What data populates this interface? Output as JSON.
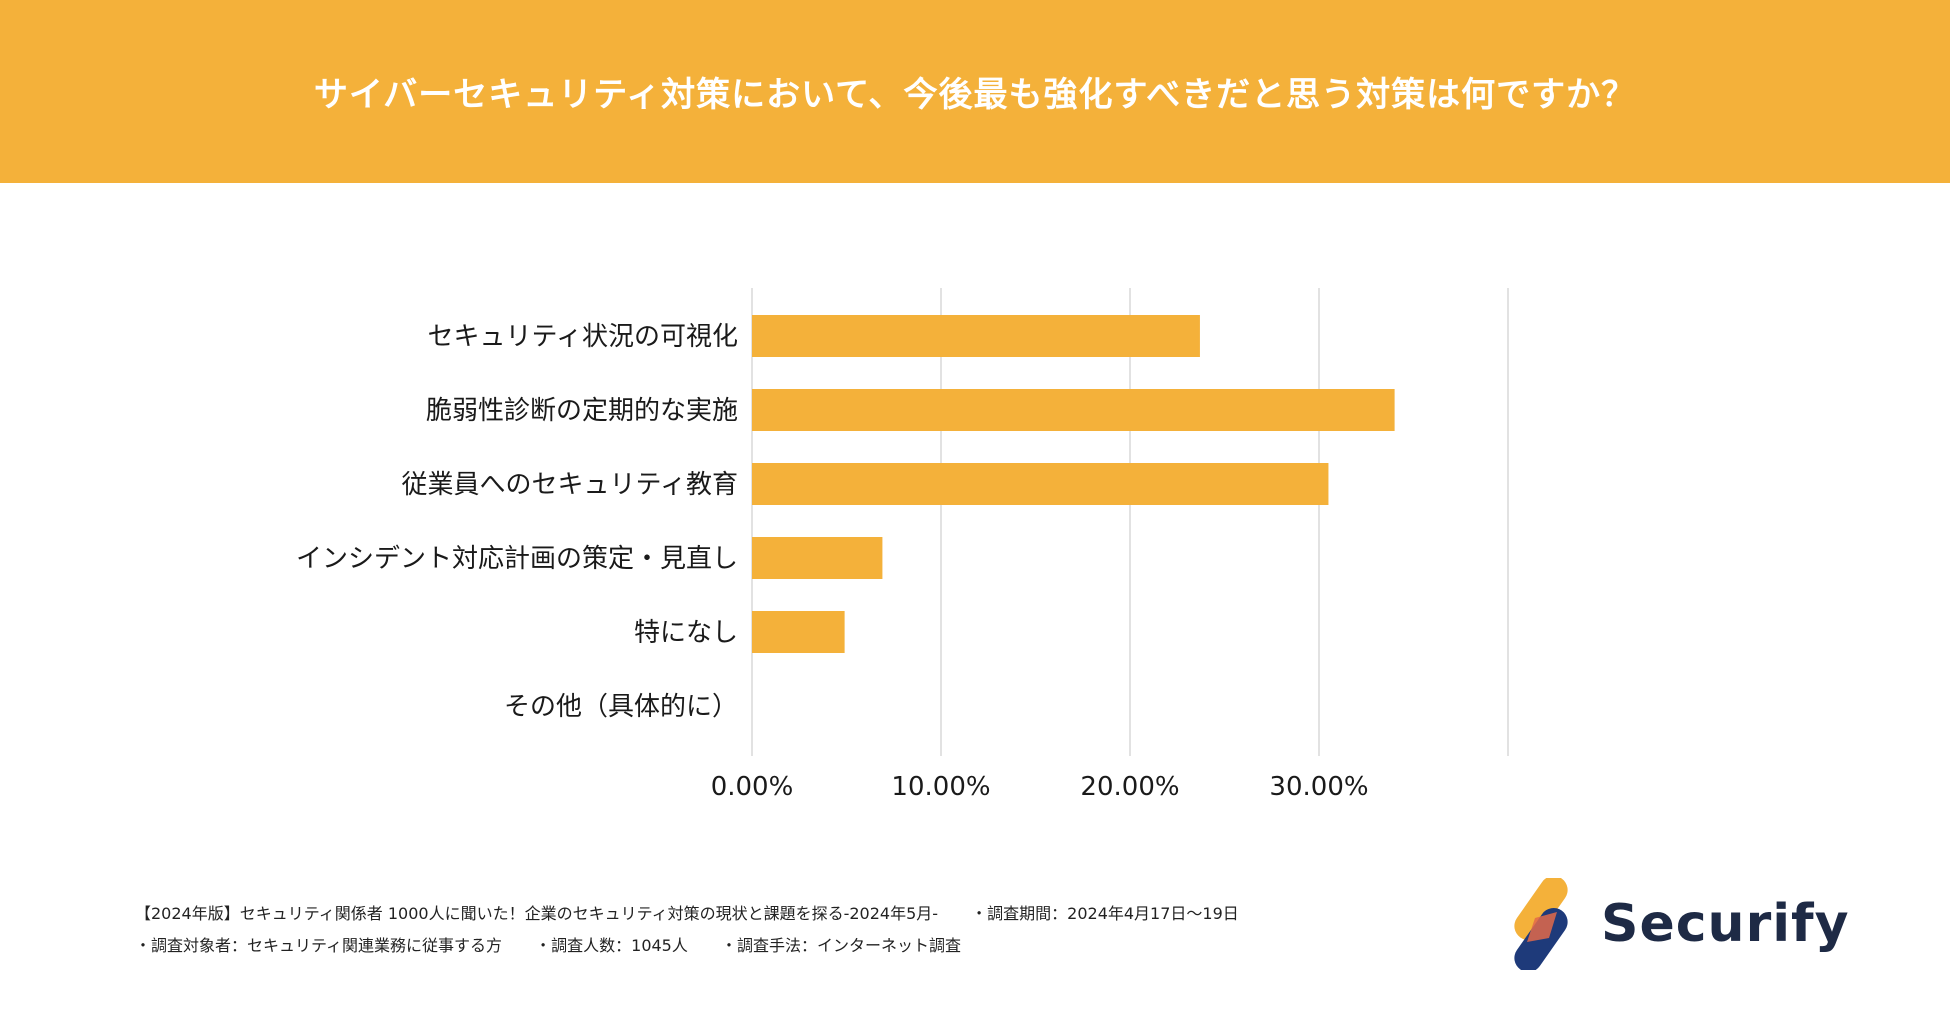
{
  "header": {
    "title": "サイバーセキュリティ対策において、今後最も強化すべきだと思う対策は何ですか？"
  },
  "chart_data": {
    "type": "bar",
    "orientation": "horizontal",
    "title": "サイバーセキュリティ対策において、今後最も強化すべきだと思う対策は何ですか？",
    "categories": [
      "セキュリティ状況の可視化",
      "脆弱性診断の定期的な実施",
      "従業員へのセキュリティ教育",
      "インシデント対応計画の策定・見直し",
      "特になし",
      "その他（具体的に）"
    ],
    "values": [
      23.7,
      34.0,
      30.5,
      6.9,
      4.9,
      0.0
    ],
    "xlim": [
      0,
      40
    ],
    "xticks": [
      0,
      10,
      20,
      30
    ],
    "tick_labels": [
      "0.00%",
      "10.00%",
      "20.00%",
      "30.00%"
    ],
    "grid": true,
    "bar_color": "#F4B13A"
  },
  "footer": {
    "line1": [
      "【2024年版】セキュリティ関係者 1000人に聞いた！企業のセキュリティ対策の現状と課題を探る-2024年5月-",
      "・調査期間：2024年4月17日〜19日"
    ],
    "line2": [
      "・調査対象者：セキュリティ関連業務に従事する方",
      "・調査人数：1045人",
      "・調査手法：インターネット調査"
    ]
  },
  "logo": {
    "name": "Securify",
    "colors": {
      "orange": "#F4B13A",
      "navy": "#1E3A7A",
      "accent": "#E26A4A"
    }
  }
}
